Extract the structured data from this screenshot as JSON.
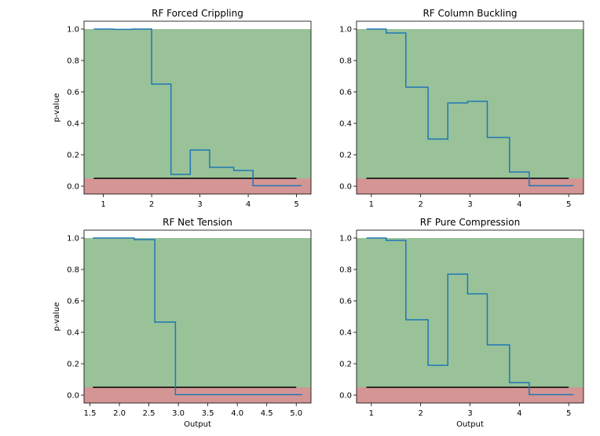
{
  "colors": {
    "pass_band": "#99c299",
    "fail_band": "#d49595",
    "step_line": "#1f77b4",
    "threshold_line": "#000000"
  },
  "chart_data": [
    {
      "type": "line",
      "title": "RF Forced Crippling",
      "xlabel": "",
      "ylabel": "p-value",
      "xlim": [
        0.6,
        5.3
      ],
      "ylim": [
        -0.05,
        1.05
      ],
      "xticks": [
        "1",
        "2",
        "3",
        "4",
        "5"
      ],
      "xtick_values": [
        1,
        2,
        3,
        4,
        5
      ],
      "yticks": [
        "0.0",
        "0.2",
        "0.4",
        "0.6",
        "0.8",
        "1.0"
      ],
      "fail_band": [
        -0.05,
        0.05
      ],
      "pass_band": [
        0.05,
        1.0
      ],
      "threshold": {
        "y": 0.05,
        "x": [
          0.8,
          5.0
        ]
      },
      "step_x": [
        0.8,
        1.2,
        1.6,
        2.0,
        2.4,
        2.8,
        3.2,
        3.7,
        4.1,
        5.1
      ],
      "step_y": [
        1.0,
        0.998,
        1.0,
        0.65,
        0.075,
        0.23,
        0.12,
        0.1,
        0.003
      ]
    },
    {
      "type": "line",
      "title": "RF Column Buckling",
      "xlabel": "",
      "ylabel": "",
      "xlim": [
        0.7,
        5.3
      ],
      "ylim": [
        -0.05,
        1.05
      ],
      "xticks": [
        "1",
        "2",
        "3",
        "4",
        "5"
      ],
      "xtick_values": [
        1,
        2,
        3,
        4,
        5
      ],
      "yticks": [
        "0.0",
        "0.2",
        "0.4",
        "0.6",
        "0.8",
        "1.0"
      ],
      "fail_band": [
        -0.05,
        0.05
      ],
      "pass_band": [
        0.05,
        1.0
      ],
      "threshold": {
        "y": 0.05,
        "x": [
          0.9,
          5.0
        ]
      },
      "step_x": [
        0.9,
        1.3,
        1.7,
        2.15,
        2.55,
        2.95,
        3.35,
        3.8,
        4.2,
        5.1
      ],
      "step_y": [
        1.0,
        0.975,
        0.63,
        0.3,
        0.53,
        0.54,
        0.31,
        0.09,
        0.003
      ]
    },
    {
      "type": "line",
      "title": "RF Net Tension",
      "xlabel": "Output",
      "ylabel": "p-value",
      "xlim": [
        1.4,
        5.25
      ],
      "ylim": [
        -0.05,
        1.05
      ],
      "xticks": [
        "1.5",
        "2.0",
        "2.5",
        "3.0",
        "3.5",
        "4.0",
        "4.5",
        "5.0"
      ],
      "xtick_values": [
        1.5,
        2.0,
        2.5,
        3.0,
        3.5,
        4.0,
        4.5,
        5.0
      ],
      "yticks": [
        "0.0",
        "0.2",
        "0.4",
        "0.6",
        "0.8",
        "1.0"
      ],
      "fail_band": [
        -0.05,
        0.05
      ],
      "pass_band": [
        0.05,
        1.0
      ],
      "threshold": {
        "y": 0.05,
        "x": [
          1.55,
          5.0
        ]
      },
      "step_x": [
        1.55,
        1.9,
        2.25,
        2.6,
        2.95,
        3.3,
        3.7,
        4.05,
        4.4,
        5.1
      ],
      "step_y": [
        1.0,
        1.0,
        0.99,
        0.465,
        0.003,
        0.003,
        0.003,
        0.003,
        0.003
      ]
    },
    {
      "type": "line",
      "title": "RF Pure Compression",
      "xlabel": "Output",
      "ylabel": "",
      "xlim": [
        0.7,
        5.3
      ],
      "ylim": [
        -0.05,
        1.05
      ],
      "xticks": [
        "1",
        "2",
        "3",
        "4",
        "5"
      ],
      "xtick_values": [
        1,
        2,
        3,
        4,
        5
      ],
      "yticks": [
        "0.0",
        "0.2",
        "0.4",
        "0.6",
        "0.8",
        "1.0"
      ],
      "fail_band": [
        -0.05,
        0.05
      ],
      "pass_band": [
        0.05,
        1.0
      ],
      "threshold": {
        "y": 0.05,
        "x": [
          0.9,
          5.0
        ]
      },
      "step_x": [
        0.9,
        1.3,
        1.7,
        2.15,
        2.55,
        2.95,
        3.35,
        3.8,
        4.2,
        5.1
      ],
      "step_y": [
        1.0,
        0.985,
        0.48,
        0.19,
        0.77,
        0.645,
        0.32,
        0.08,
        0.003
      ]
    }
  ]
}
